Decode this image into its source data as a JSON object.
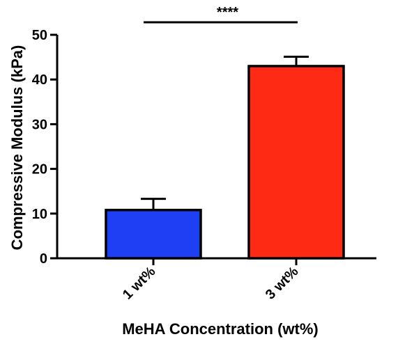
{
  "chart_data": {
    "type": "bar",
    "title": "",
    "xlabel": "MeHA Concentration (wt%)",
    "ylabel": "Compressive Modulus (kPa)",
    "ylim": [
      0,
      50
    ],
    "yticks": [
      0,
      10,
      20,
      30,
      40,
      50
    ],
    "categories": [
      "1 wt%",
      "3 wt%"
    ],
    "values": [
      10.8,
      43.0
    ],
    "errors": [
      2.5,
      2.1
    ],
    "colors": [
      "#1f3ff5",
      "#ff2a14"
    ],
    "significance": {
      "between": [
        0,
        1
      ],
      "label": "****"
    },
    "grid": false,
    "legend": "none"
  }
}
